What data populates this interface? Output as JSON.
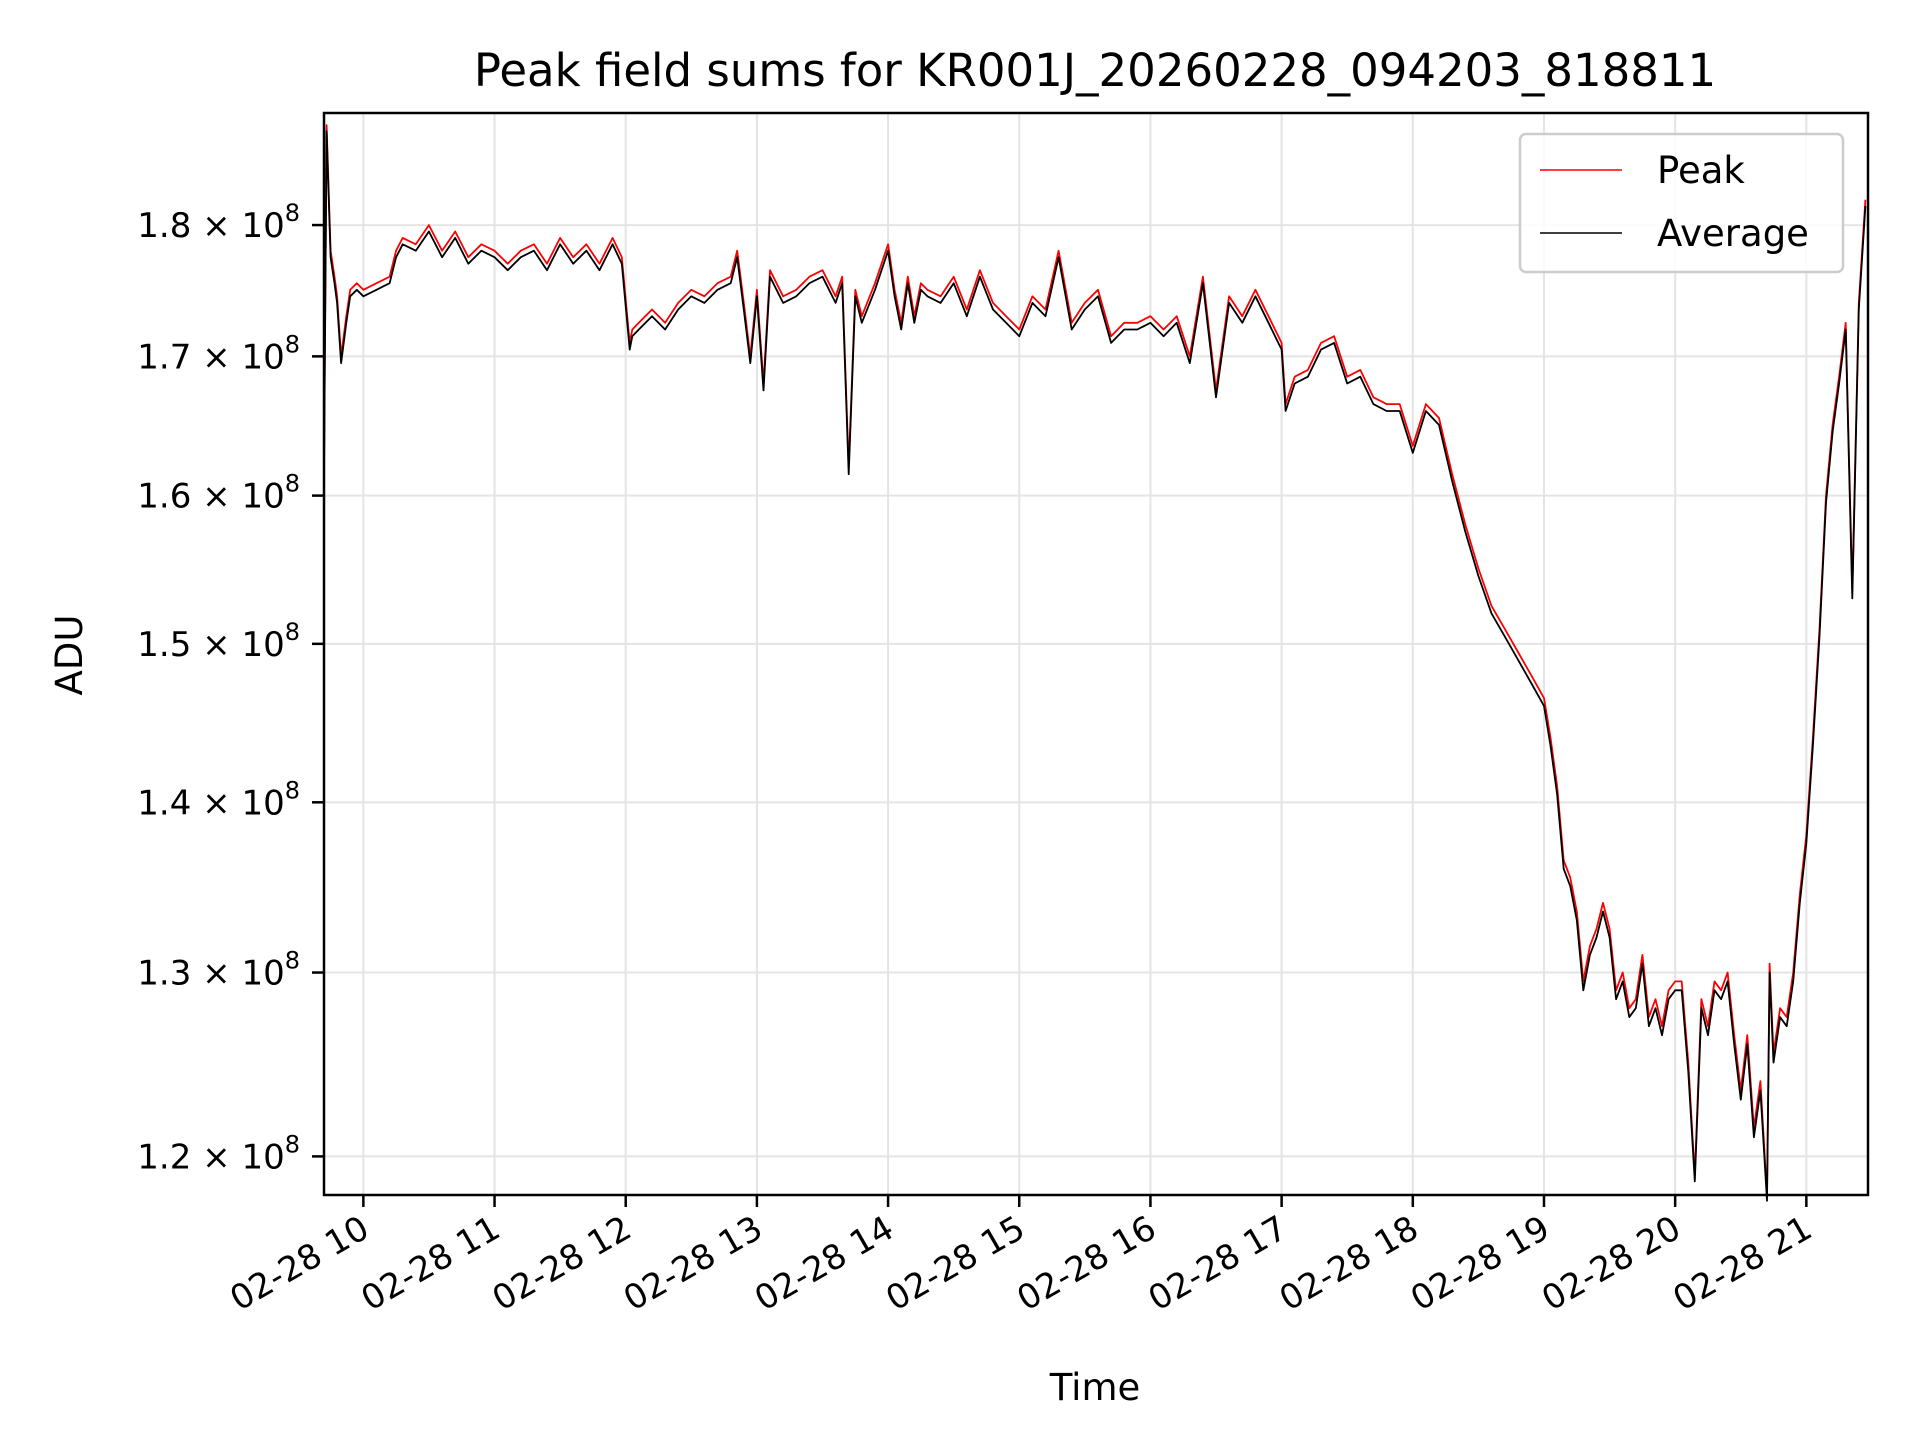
{
  "chart_data": {
    "type": "line",
    "title": "Peak field sums for KR001J_20260228_094203_818811",
    "xlabel": "Time",
    "ylabel": "ADU",
    "x_unit": "hour of 2026-02-28",
    "xlim": [
      9.7,
      21.47
    ],
    "ylim": [
      118000000,
      189000000
    ],
    "yscale": "log",
    "grid": true,
    "legend_position": "top-right",
    "x_ticks": [
      {
        "value": 10,
        "label": "02-28 10"
      },
      {
        "value": 11,
        "label": "02-28 11"
      },
      {
        "value": 12,
        "label": "02-28 12"
      },
      {
        "value": 13,
        "label": "02-28 13"
      },
      {
        "value": 14,
        "label": "02-28 14"
      },
      {
        "value": 15,
        "label": "02-28 15"
      },
      {
        "value": 16,
        "label": "02-28 16"
      },
      {
        "value": 17,
        "label": "02-28 17"
      },
      {
        "value": 18,
        "label": "02-28 18"
      },
      {
        "value": 19,
        "label": "02-28 19"
      },
      {
        "value": 20,
        "label": "02-28 20"
      },
      {
        "value": 21,
        "label": "02-28 21"
      }
    ],
    "y_ticks": [
      {
        "value": 120000000,
        "mantissa": "1.2",
        "base": "10",
        "exponent": "8"
      },
      {
        "value": 130000000,
        "mantissa": "1.3",
        "base": "10",
        "exponent": "8"
      },
      {
        "value": 140000000,
        "mantissa": "1.4",
        "base": "10",
        "exponent": "8"
      },
      {
        "value": 150000000,
        "mantissa": "1.5",
        "base": "10",
        "exponent": "8"
      },
      {
        "value": 160000000,
        "mantissa": "1.6",
        "base": "10",
        "exponent": "8"
      },
      {
        "value": 170000000,
        "mantissa": "1.7",
        "base": "10",
        "exponent": "8"
      },
      {
        "value": 180000000,
        "mantissa": "1.8",
        "base": "10",
        "exponent": "8"
      }
    ],
    "series": [
      {
        "name": "Peak",
        "color": "#ff0000"
      },
      {
        "name": "Average",
        "color": "#000000"
      }
    ],
    "x": [
      9.7,
      9.72,
      9.75,
      9.78,
      9.8,
      9.83,
      9.87,
      9.9,
      9.95,
      10.0,
      10.1,
      10.2,
      10.25,
      10.3,
      10.4,
      10.5,
      10.6,
      10.7,
      10.8,
      10.9,
      11.0,
      11.1,
      11.2,
      11.3,
      11.4,
      11.5,
      11.6,
      11.7,
      11.8,
      11.9,
      11.97,
      12.03,
      12.05,
      12.1,
      12.2,
      12.3,
      12.4,
      12.5,
      12.6,
      12.7,
      12.8,
      12.85,
      12.9,
      12.95,
      13.0,
      13.05,
      13.1,
      13.2,
      13.3,
      13.4,
      13.5,
      13.6,
      13.65,
      13.7,
      13.75,
      13.8,
      13.9,
      14.0,
      14.05,
      14.1,
      14.15,
      14.2,
      14.25,
      14.3,
      14.4,
      14.5,
      14.6,
      14.7,
      14.8,
      14.9,
      15.0,
      15.1,
      15.2,
      15.3,
      15.4,
      15.5,
      15.6,
      15.7,
      15.8,
      15.9,
      16.0,
      16.1,
      16.2,
      16.3,
      16.4,
      16.5,
      16.6,
      16.7,
      16.8,
      16.9,
      17.0,
      17.03,
      17.1,
      17.2,
      17.3,
      17.4,
      17.5,
      17.6,
      17.7,
      17.8,
      17.9,
      18.0,
      18.1,
      18.2,
      18.3,
      18.4,
      18.5,
      18.6,
      18.7,
      18.8,
      18.9,
      19.0,
      19.05,
      19.1,
      19.15,
      19.2,
      19.25,
      19.3,
      19.35,
      19.4,
      19.45,
      19.5,
      19.55,
      19.6,
      19.65,
      19.7,
      19.75,
      19.8,
      19.85,
      19.9,
      19.95,
      20.0,
      20.05,
      20.1,
      20.15,
      20.2,
      20.25,
      20.3,
      20.35,
      20.4,
      20.45,
      20.5,
      20.55,
      20.6,
      20.65,
      20.7,
      20.72,
      20.75,
      20.8,
      20.85,
      20.9,
      20.95,
      21.0,
      21.05,
      21.1,
      21.15,
      21.2,
      21.25,
      21.3,
      21.35,
      21.4,
      21.45
    ],
    "peak": [
      162000000,
      188000000,
      178000000,
      176000000,
      174500000,
      170000000,
      173000000,
      175000000,
      175500000,
      175000000,
      175500000,
      176000000,
      178000000,
      179000000,
      178500000,
      180000000,
      178000000,
      179500000,
      177500000,
      178500000,
      178000000,
      177000000,
      178000000,
      178500000,
      177000000,
      179000000,
      177500000,
      178500000,
      177000000,
      179000000,
      177500000,
      171000000,
      172000000,
      172500000,
      173500000,
      172500000,
      174000000,
      175000000,
      174500000,
      175500000,
      176000000,
      178000000,
      174000000,
      170000000,
      175000000,
      168000000,
      176500000,
      174500000,
      175000000,
      176000000,
      176500000,
      174500000,
      176000000,
      162000000,
      175000000,
      173000000,
      175500000,
      178500000,
      175000000,
      172500000,
      176000000,
      173000000,
      175500000,
      175000000,
      174500000,
      176000000,
      173500000,
      176500000,
      174000000,
      173000000,
      172000000,
      174500000,
      173500000,
      178000000,
      172500000,
      174000000,
      175000000,
      171500000,
      172500000,
      172500000,
      173000000,
      172000000,
      173000000,
      170000000,
      176000000,
      167500000,
      174500000,
      173000000,
      175000000,
      173000000,
      171000000,
      166500000,
      168500000,
      169000000,
      171000000,
      171500000,
      168500000,
      169000000,
      167000000,
      166500000,
      166500000,
      163500000,
      166500000,
      165500000,
      161500000,
      158000000,
      155000000,
      152500000,
      151000000,
      149500000,
      148000000,
      146500000,
      144000000,
      141000000,
      136500000,
      135500000,
      133500000,
      129500000,
      131500000,
      132500000,
      134000000,
      132500000,
      129000000,
      130000000,
      128000000,
      128500000,
      131000000,
      127500000,
      128500000,
      127000000,
      129000000,
      129500000,
      129500000,
      125000000,
      119000000,
      128500000,
      127000000,
      129500000,
      129000000,
      130000000,
      126500000,
      123500000,
      126500000,
      121500000,
      124000000,
      118000000,
      130500000,
      125500000,
      128000000,
      127500000,
      130000000,
      134500000,
      138000000,
      144000000,
      151000000,
      160000000,
      165000000,
      168500000,
      172500000,
      153500000,
      174000000,
      182000000
    ],
    "average": [
      161500000,
      187500000,
      177500000,
      175500000,
      174000000,
      169500000,
      172500000,
      174500000,
      175000000,
      174500000,
      175000000,
      175500000,
      177500000,
      178500000,
      178000000,
      179500000,
      177500000,
      179000000,
      177000000,
      178000000,
      177500000,
      176500000,
      177500000,
      178000000,
      176500000,
      178500000,
      177000000,
      178000000,
      176500000,
      178500000,
      177000000,
      170500000,
      171500000,
      172000000,
      173000000,
      172000000,
      173500000,
      174500000,
      174000000,
      175000000,
      175500000,
      177500000,
      173500000,
      169500000,
      174500000,
      167500000,
      176000000,
      174000000,
      174500000,
      175500000,
      176000000,
      174000000,
      175500000,
      161500000,
      174500000,
      172500000,
      175000000,
      178000000,
      174500000,
      172000000,
      175500000,
      172500000,
      175000000,
      174500000,
      174000000,
      175500000,
      173000000,
      176000000,
      173500000,
      172500000,
      171500000,
      174000000,
      173000000,
      177500000,
      172000000,
      173500000,
      174500000,
      171000000,
      172000000,
      172000000,
      172500000,
      171500000,
      172500000,
      169500000,
      175500000,
      167000000,
      174000000,
      172500000,
      174500000,
      172500000,
      170500000,
      166000000,
      168000000,
      168500000,
      170500000,
      171000000,
      168000000,
      168500000,
      166500000,
      166000000,
      166000000,
      163000000,
      166000000,
      165000000,
      161000000,
      157500000,
      154500000,
      152000000,
      150500000,
      149000000,
      147500000,
      146000000,
      143500000,
      140500000,
      136000000,
      135000000,
      133000000,
      129000000,
      131000000,
      132000000,
      133500000,
      132000000,
      128500000,
      129500000,
      127500000,
      128000000,
      130500000,
      127000000,
      128000000,
      126500000,
      128500000,
      129000000,
      129000000,
      124500000,
      118700000,
      128000000,
      126500000,
      129000000,
      128500000,
      129500000,
      126000000,
      123000000,
      126000000,
      121000000,
      123500000,
      117700000,
      130000000,
      125000000,
      127500000,
      127000000,
      129500000,
      134000000,
      137500000,
      143500000,
      150500000,
      159500000,
      164500000,
      168000000,
      172000000,
      153000000,
      173500000,
      181500000
    ]
  }
}
